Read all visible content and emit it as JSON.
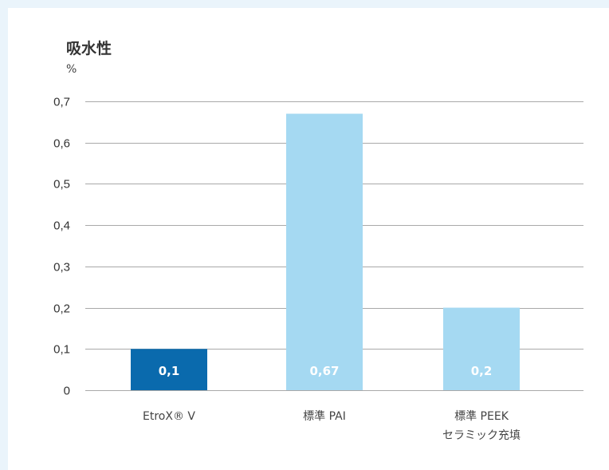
{
  "chart_data": {
    "type": "bar",
    "title": "吸水性",
    "unit": "%",
    "xlabel": "",
    "ylabel": "%",
    "ylim": [
      0,
      0.7
    ],
    "y_ticks": [
      0,
      0.1,
      0.2,
      0.3,
      0.4,
      0.5,
      0.6,
      0.7
    ],
    "y_tick_labels": [
      "0",
      "0,1",
      "0,2",
      "0,3",
      "0,4",
      "0,5",
      "0,6",
      "0,7"
    ],
    "grid": true,
    "categories": [
      [
        "EtroX® V"
      ],
      [
        "標準 PAI"
      ],
      [
        "標準 PEEK",
        "セラミック充填"
      ]
    ],
    "values": [
      0.1,
      0.67,
      0.2
    ],
    "value_labels": [
      "0,1",
      "0,67",
      "0,2"
    ],
    "bar_colors": [
      "#0a6aad",
      "#a5d9f2",
      "#a5d9f2"
    ],
    "gridline_color": "#a9a9a9"
  }
}
